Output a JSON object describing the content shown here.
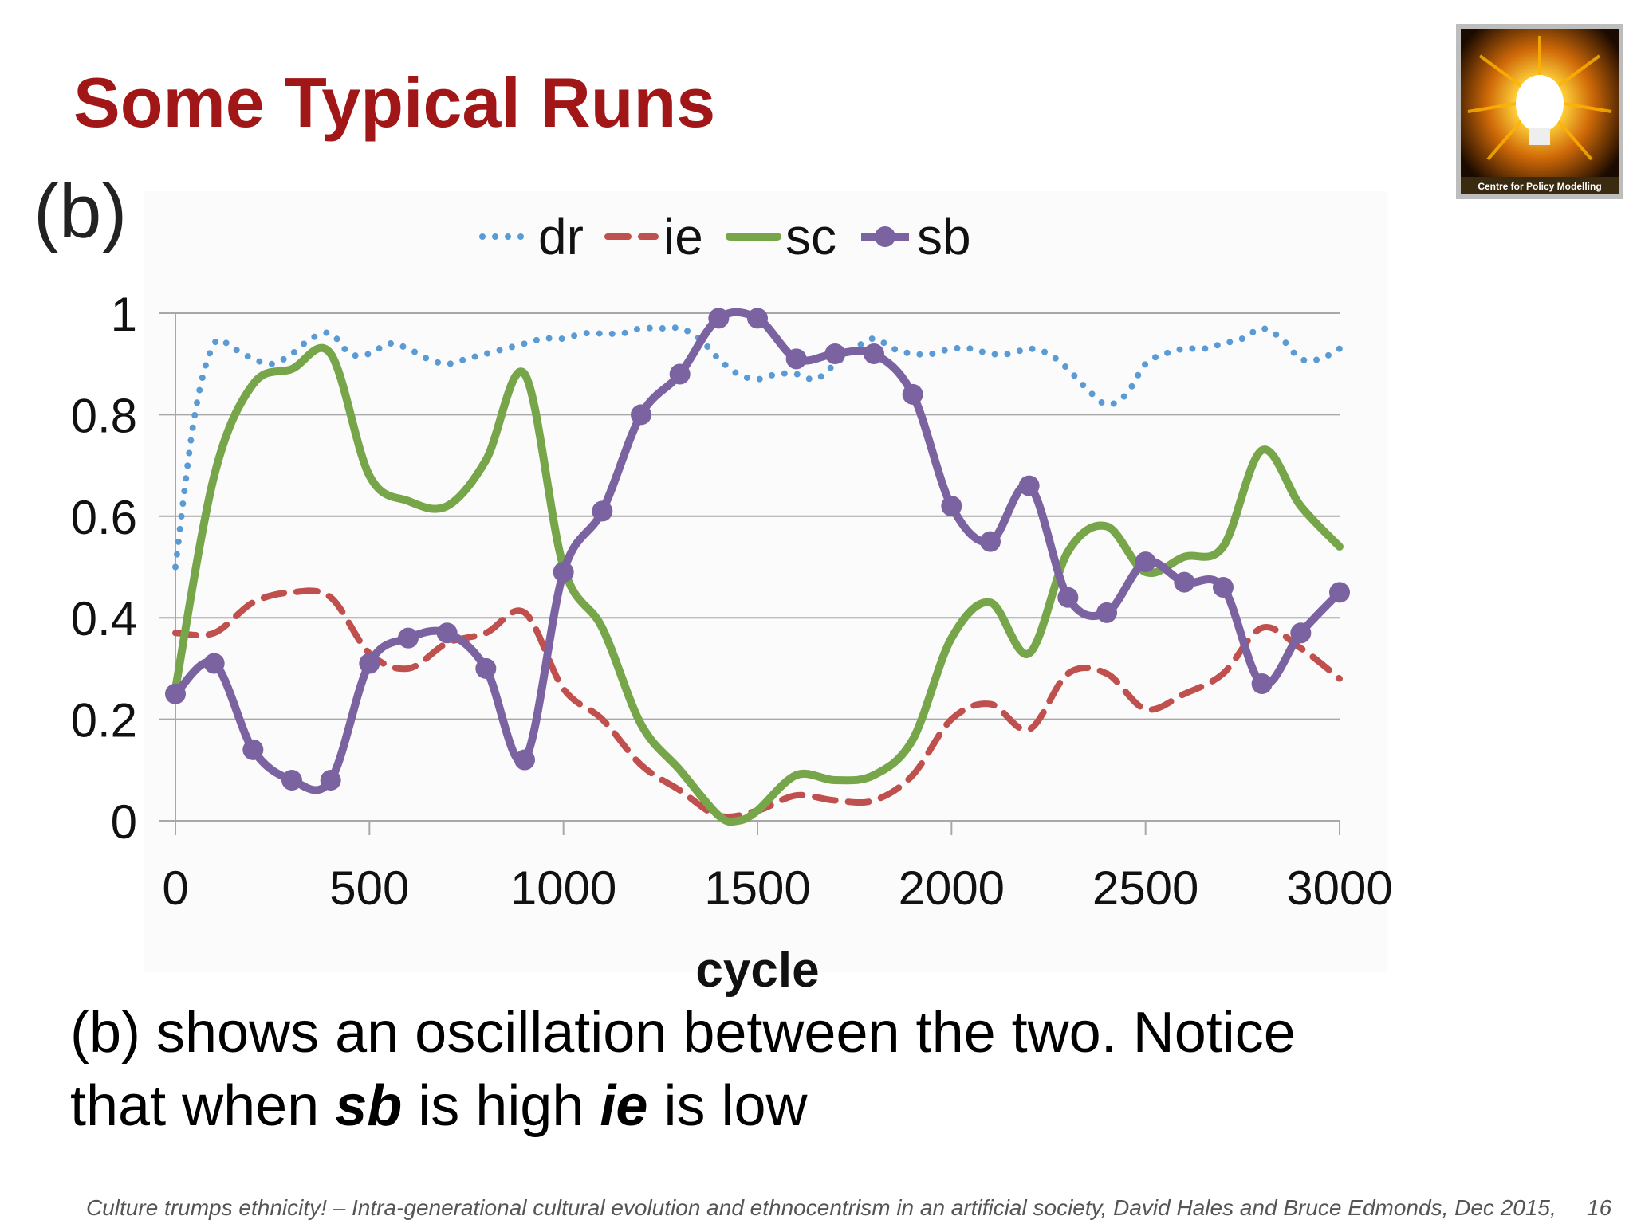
{
  "slide": {
    "title": "Some Typical Runs",
    "caption": {
      "line1": "(b) shows an oscillation between the two. Notice",
      "line2_pre": "that when ",
      "line2_sb": "sb",
      "line2_mid": " is high ",
      "line2_ie": "ie",
      "line2_post": " is low"
    },
    "footer": "Culture trumps ethnicity! – Intra-generational cultural evolution and ethnocentrism in an artificial society, David Hales and Bruce Edmonds, Dec 2015,",
    "page_number": "16",
    "logo_text": "Centre for Policy Modelling"
  },
  "chart_data": {
    "type": "line",
    "panel_label": "(b)",
    "xlabel": "cycle",
    "ylabel": "",
    "xlim": [
      0,
      3000
    ],
    "ylim": [
      0,
      1
    ],
    "xticks": [
      "0",
      "500",
      "1000",
      "1500",
      "2000",
      "2500",
      "3000"
    ],
    "yticks": [
      "0",
      "0.2",
      "0.4",
      "0.6",
      "0.8",
      "1"
    ],
    "grid": "horizontal",
    "legend": "top-center",
    "series": [
      {
        "name": "dr",
        "style": "dotted",
        "color": "#5b9bd5",
        "x": [
          0,
          50,
          100,
          150,
          200,
          250,
          300,
          350,
          400,
          450,
          500,
          550,
          600,
          650,
          700,
          750,
          800,
          850,
          900,
          950,
          1000,
          1050,
          1100,
          1150,
          1200,
          1250,
          1300,
          1350,
          1400,
          1450,
          1500,
          1550,
          1600,
          1650,
          1700,
          1750,
          1800,
          1850,
          1900,
          1950,
          2000,
          2050,
          2100,
          2150,
          2200,
          2250,
          2300,
          2350,
          2400,
          2450,
          2500,
          2550,
          2600,
          2650,
          2700,
          2750,
          2800,
          2850,
          2900,
          2950,
          3000
        ],
        "y": [
          0.5,
          0.8,
          0.94,
          0.93,
          0.91,
          0.9,
          0.92,
          0.95,
          0.96,
          0.92,
          0.92,
          0.94,
          0.93,
          0.91,
          0.9,
          0.91,
          0.92,
          0.93,
          0.94,
          0.95,
          0.95,
          0.96,
          0.96,
          0.96,
          0.97,
          0.97,
          0.97,
          0.95,
          0.91,
          0.88,
          0.87,
          0.88,
          0.88,
          0.87,
          0.9,
          0.93,
          0.95,
          0.93,
          0.92,
          0.92,
          0.93,
          0.93,
          0.92,
          0.92,
          0.93,
          0.92,
          0.89,
          0.85,
          0.82,
          0.84,
          0.9,
          0.92,
          0.93,
          0.93,
          0.94,
          0.95,
          0.97,
          0.95,
          0.91,
          0.91,
          0.93
        ]
      },
      {
        "name": "ie",
        "style": "dashed",
        "color": "#c0504d",
        "x": [
          0,
          100,
          200,
          300,
          400,
          500,
          600,
          700,
          800,
          900,
          1000,
          1100,
          1200,
          1300,
          1400,
          1500,
          1600,
          1700,
          1800,
          1900,
          2000,
          2100,
          2200,
          2300,
          2400,
          2500,
          2600,
          2700,
          2800,
          2900,
          3000
        ],
        "y": [
          0.37,
          0.37,
          0.43,
          0.45,
          0.44,
          0.33,
          0.3,
          0.35,
          0.37,
          0.41,
          0.26,
          0.2,
          0.11,
          0.06,
          0.01,
          0.02,
          0.05,
          0.04,
          0.04,
          0.09,
          0.2,
          0.23,
          0.18,
          0.29,
          0.29,
          0.22,
          0.25,
          0.29,
          0.38,
          0.34,
          0.28
        ]
      },
      {
        "name": "sc",
        "style": "solid",
        "color": "#77a54a",
        "x": [
          0,
          100,
          200,
          300,
          400,
          500,
          600,
          700,
          800,
          900,
          1000,
          1100,
          1200,
          1300,
          1400,
          1450,
          1500,
          1600,
          1700,
          1800,
          1900,
          2000,
          2100,
          2200,
          2300,
          2400,
          2500,
          2600,
          2700,
          2800,
          2900,
          3000
        ],
        "y": [
          0.26,
          0.68,
          0.86,
          0.89,
          0.92,
          0.68,
          0.63,
          0.62,
          0.71,
          0.88,
          0.5,
          0.38,
          0.19,
          0.1,
          0.01,
          0.0,
          0.02,
          0.09,
          0.08,
          0.09,
          0.16,
          0.36,
          0.43,
          0.33,
          0.53,
          0.58,
          0.49,
          0.52,
          0.54,
          0.73,
          0.62,
          0.54
        ]
      },
      {
        "name": "sb",
        "style": "solid-marker",
        "color": "#7b62a0",
        "x": [
          0,
          100,
          200,
          300,
          400,
          500,
          600,
          700,
          800,
          900,
          1000,
          1100,
          1200,
          1300,
          1400,
          1500,
          1600,
          1700,
          1800,
          1900,
          2000,
          2100,
          2200,
          2300,
          2400,
          2500,
          2600,
          2700,
          2800,
          2900,
          3000
        ],
        "y": [
          0.25,
          0.31,
          0.14,
          0.08,
          0.08,
          0.31,
          0.36,
          0.37,
          0.3,
          0.12,
          0.49,
          0.61,
          0.8,
          0.88,
          0.99,
          0.99,
          0.91,
          0.92,
          0.92,
          0.84,
          0.62,
          0.55,
          0.66,
          0.44,
          0.41,
          0.51,
          0.47,
          0.46,
          0.27,
          0.37,
          0.45
        ]
      }
    ]
  }
}
